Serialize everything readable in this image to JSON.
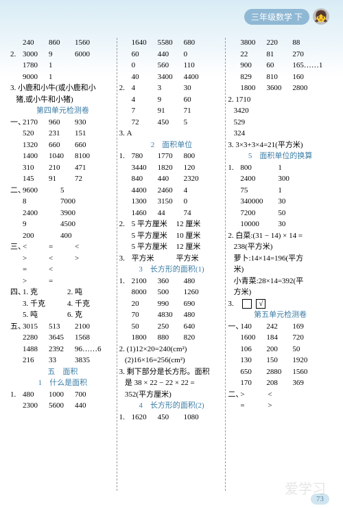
{
  "header": {
    "badge": "三年级数学 下",
    "icon": "👧"
  },
  "col1": [
    {
      "t": "r3",
      "v": [
        "",
        "240",
        "860",
        "1560"
      ]
    },
    {
      "t": "r3",
      "v": [
        "2.",
        "3000",
        "9",
        "6000"
      ]
    },
    {
      "t": "r3",
      "v": [
        "",
        "1780",
        "1",
        ""
      ]
    },
    {
      "t": "r3",
      "v": [
        "",
        "9000",
        "1",
        ""
      ]
    },
    {
      "t": "txt",
      "v": "3. 小鹿和小牛(或小鹿和小"
    },
    {
      "t": "txt",
      "v": "   猪,或小牛和小猪)"
    },
    {
      "t": "hdr",
      "v": "第四单元检测卷"
    },
    {
      "t": "r3",
      "v": [
        "一、",
        "2170",
        "960",
        "930"
      ]
    },
    {
      "t": "r3",
      "v": [
        "",
        "520",
        "231",
        "151"
      ]
    },
    {
      "t": "r3",
      "v": [
        "",
        "1320",
        "660",
        "660"
      ]
    },
    {
      "t": "r3",
      "v": [
        "",
        "1400",
        "1040",
        "8100"
      ]
    },
    {
      "t": "r3",
      "v": [
        "",
        "310",
        "210",
        "471"
      ]
    },
    {
      "t": "r3",
      "v": [
        "",
        "145",
        "91",
        "72"
      ]
    },
    {
      "t": "r2",
      "v": [
        "二、",
        "9600",
        "5"
      ]
    },
    {
      "t": "r2",
      "v": [
        "",
        "8",
        "7000"
      ]
    },
    {
      "t": "r2",
      "v": [
        "",
        "2400",
        "3900"
      ]
    },
    {
      "t": "r2",
      "v": [
        "",
        "9",
        "4500"
      ]
    },
    {
      "t": "r2",
      "v": [
        "",
        "200",
        "400"
      ]
    },
    {
      "t": "r3",
      "v": [
        "三、",
        "<",
        "=",
        "<"
      ]
    },
    {
      "t": "r3",
      "v": [
        "",
        ">",
        "<",
        ">"
      ]
    },
    {
      "t": "r3",
      "v": [
        "",
        "=",
        "<",
        ""
      ]
    },
    {
      "t": "r3",
      "v": [
        "",
        ">",
        "=",
        ""
      ]
    },
    {
      "t": "r2l",
      "v": [
        "四、",
        "1. 克",
        "2. 吨"
      ]
    },
    {
      "t": "r2l",
      "v": [
        "",
        "3. 千克",
        "4. 千克"
      ]
    },
    {
      "t": "r2l",
      "v": [
        "",
        "5. 吨",
        "6. 克"
      ]
    },
    {
      "t": "r3",
      "v": [
        "五、",
        "3015",
        "513",
        "2100"
      ]
    },
    {
      "t": "r3",
      "v": [
        "",
        "2280",
        "3645",
        "1568"
      ]
    },
    {
      "t": "r3",
      "v": [
        "",
        "1488",
        "2392",
        "96……6"
      ]
    },
    {
      "t": "r3",
      "v": [
        "",
        "216",
        "33",
        "3835"
      ]
    },
    {
      "t": "hdr",
      "v": "五　面积"
    },
    {
      "t": "hdr",
      "v": "1　什么是面积"
    },
    {
      "t": "r3",
      "v": [
        "1.",
        "480",
        "1000",
        "700"
      ]
    },
    {
      "t": "r3",
      "v": [
        "",
        "2300",
        "5600",
        "440"
      ]
    }
  ],
  "col2": [
    {
      "t": "r3",
      "v": [
        "",
        "1640",
        "5580",
        "680"
      ]
    },
    {
      "t": "r3",
      "v": [
        "",
        "60",
        "440",
        "0"
      ]
    },
    {
      "t": "r3",
      "v": [
        "",
        "0",
        "560",
        "110"
      ]
    },
    {
      "t": "r3",
      "v": [
        "",
        "40",
        "3400",
        "4400"
      ]
    },
    {
      "t": "r3",
      "v": [
        "2.",
        "4",
        "3",
        "30"
      ]
    },
    {
      "t": "r3",
      "v": [
        "",
        "4",
        "9",
        "60"
      ]
    },
    {
      "t": "r3",
      "v": [
        "",
        "7",
        "91",
        "71"
      ]
    },
    {
      "t": "r3",
      "v": [
        "",
        "72",
        "450",
        "5"
      ]
    },
    {
      "t": "txt",
      "v": "3. A"
    },
    {
      "t": "hdr",
      "v": "2　面积单位"
    },
    {
      "t": "r3",
      "v": [
        "1.",
        "780",
        "1770",
        "800"
      ]
    },
    {
      "t": "r3",
      "v": [
        "",
        "3440",
        "1820",
        "120"
      ]
    },
    {
      "t": "r3",
      "v": [
        "",
        "840",
        "440",
        "2320"
      ]
    },
    {
      "t": "r3",
      "v": [
        "",
        "4400",
        "2460",
        "4"
      ]
    },
    {
      "t": "r3",
      "v": [
        "",
        "1300",
        "3150",
        "0"
      ]
    },
    {
      "t": "r3",
      "v": [
        "",
        "1460",
        "44",
        "74"
      ]
    },
    {
      "t": "r2l",
      "v": [
        "2.",
        "5 平方厘米",
        "12 厘米"
      ]
    },
    {
      "t": "r2l",
      "v": [
        "",
        "5 平方厘米",
        "10 厘米"
      ]
    },
    {
      "t": "r2l",
      "v": [
        "",
        "5 平方厘米",
        "12 厘米"
      ]
    },
    {
      "t": "r2l",
      "v": [
        "3.",
        "平方米",
        "平方米"
      ]
    },
    {
      "t": "hdr",
      "v": "3　长方形的面积(1)"
    },
    {
      "t": "r3",
      "v": [
        "1.",
        "2100",
        "360",
        "480"
      ]
    },
    {
      "t": "r3",
      "v": [
        "",
        "8000",
        "500",
        "1260"
      ]
    },
    {
      "t": "r3",
      "v": [
        "",
        "20",
        "990",
        "690"
      ]
    },
    {
      "t": "r3",
      "v": [
        "",
        "70",
        "4830",
        "480"
      ]
    },
    {
      "t": "r3",
      "v": [
        "",
        "50",
        "250",
        "640"
      ]
    },
    {
      "t": "r3",
      "v": [
        "",
        "1800",
        "880",
        "820"
      ]
    },
    {
      "t": "txt",
      "v": "2. (1)12×20=240(cm²)"
    },
    {
      "t": "txt",
      "v": "   (2)16×16=256(cm²)"
    },
    {
      "t": "txt",
      "v": "3. 剩下部分是长方形。面积"
    },
    {
      "t": "txt",
      "v": "   是 38 × 22 − 22 × 22 ="
    },
    {
      "t": "txt",
      "v": "   352(平方厘米)"
    },
    {
      "t": "hdr",
      "v": "4　长方形的面积(2)"
    },
    {
      "t": "r3",
      "v": [
        "1.",
        "1620",
        "450",
        "1080"
      ]
    }
  ],
  "col3": [
    {
      "t": "r3",
      "v": [
        "",
        "3800",
        "220",
        "88"
      ]
    },
    {
      "t": "r3",
      "v": [
        "",
        "22",
        "81",
        "270"
      ]
    },
    {
      "t": "r3",
      "v": [
        "",
        "900",
        "60",
        "165……1"
      ]
    },
    {
      "t": "r3",
      "v": [
        "",
        "829",
        "810",
        "160"
      ]
    },
    {
      "t": "r3",
      "v": [
        "",
        "1800",
        "3600",
        "2800"
      ]
    },
    {
      "t": "txt",
      "v": "2. 1710"
    },
    {
      "t": "txt",
      "v": "   3420"
    },
    {
      "t": "txt",
      "v": "   529"
    },
    {
      "t": "txt",
      "v": "   324"
    },
    {
      "t": "txt",
      "v": "3. 3×3+3×4=21(平方米)"
    },
    {
      "t": "hdr",
      "v": "5　面积单位的换算"
    },
    {
      "t": "r2",
      "v": [
        "1.",
        "800",
        "1"
      ]
    },
    {
      "t": "r2",
      "v": [
        "",
        "2400",
        "300"
      ]
    },
    {
      "t": "r2",
      "v": [
        "",
        "75",
        "1"
      ]
    },
    {
      "t": "r2",
      "v": [
        "",
        "340000",
        "30"
      ]
    },
    {
      "t": "r2",
      "v": [
        "",
        "7200",
        "50"
      ]
    },
    {
      "t": "r2",
      "v": [
        "",
        "10000",
        "30"
      ]
    },
    {
      "t": "txt",
      "v": "2. 白菜:(31 − 14) × 14 ="
    },
    {
      "t": "txt",
      "v": "   238(平方米)"
    },
    {
      "t": "txt",
      "v": "   萝卜:14×14=196(平方"
    },
    {
      "t": "txt",
      "v": "   米)"
    },
    {
      "t": "txt",
      "v": "   小青菜:28×14=392(平"
    },
    {
      "t": "txt",
      "v": "   方米)"
    },
    {
      "t": "boxes",
      "v": "3."
    },
    {
      "t": "hdr",
      "v": "第五单元检测卷"
    },
    {
      "t": "r3",
      "v": [
        "一、",
        "140",
        "242",
        "169"
      ]
    },
    {
      "t": "r3",
      "v": [
        "",
        "1600",
        "184",
        "720"
      ]
    },
    {
      "t": "r3",
      "v": [
        "",
        "106",
        "200",
        "50"
      ]
    },
    {
      "t": "r3",
      "v": [
        "",
        "130",
        "150",
        "1920"
      ]
    },
    {
      "t": "r3",
      "v": [
        "",
        "650",
        "2880",
        "1560"
      ]
    },
    {
      "t": "r3",
      "v": [
        "",
        "170",
        "208",
        "369"
      ]
    },
    {
      "t": "r2s",
      "v": [
        "二、",
        ">",
        "<"
      ]
    },
    {
      "t": "r2s",
      "v": [
        "",
        "=",
        ">"
      ]
    }
  ],
  "footer": {
    "page": "73",
    "wm": "爱学习"
  }
}
